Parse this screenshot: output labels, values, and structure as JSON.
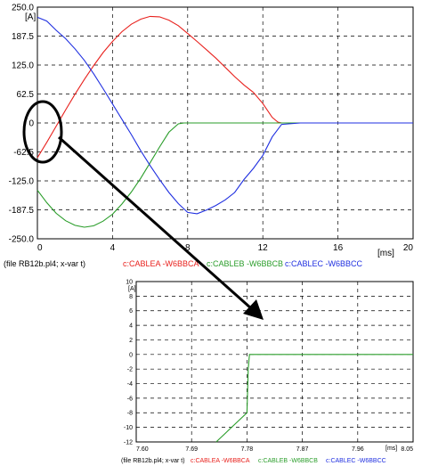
{
  "chart_data": [
    {
      "type": "line",
      "ylabel": "[A]",
      "xlabel": "[ms]",
      "xlim": [
        0,
        20
      ],
      "ylim": [
        -250,
        250
      ],
      "x_ticks": [
        "0",
        "4",
        "8",
        "12",
        "16",
        "20"
      ],
      "y_ticks": [
        "250.0",
        "187.5",
        "125.0",
        "62.5",
        "0",
        "-62.5",
        "-125.0",
        "-187.5",
        "-250.0"
      ],
      "grid": true,
      "caption": "(file RB12b.pl4; x-var t)",
      "series": [
        {
          "name": "c:CABLEA -W6BBCA",
          "color": "#e8211d",
          "x": [
            0,
            0.5,
            1,
            1.5,
            2,
            2.5,
            3,
            3.5,
            4,
            4.5,
            5,
            5.5,
            6,
            6.5,
            7,
            7.5,
            8,
            8.5,
            9,
            9.5,
            10,
            10.5,
            11,
            11.5,
            12,
            12.5,
            12.8,
            13.0,
            14,
            16,
            20
          ],
          "y": [
            -75,
            -42,
            -7,
            28,
            62,
            94,
            124,
            152,
            176,
            197,
            213,
            224,
            230,
            229,
            222,
            210,
            193,
            176,
            158,
            140,
            120,
            100,
            82,
            66,
            42,
            12,
            2,
            0,
            0,
            0,
            0
          ]
        },
        {
          "name": "c:CABLEB -W6BBCB",
          "color": "#2a9d2a",
          "x": [
            0,
            0.5,
            1,
            1.5,
            2,
            2.5,
            3,
            3.5,
            4,
            4.5,
            5,
            5.5,
            6,
            6.5,
            7,
            7.5,
            7.8,
            8,
            10,
            12,
            14,
            16,
            20
          ],
          "y": [
            -145,
            -172,
            -195,
            -211,
            -221,
            -225,
            -222,
            -212,
            -197,
            -175,
            -149,
            -119,
            -86,
            -52,
            -20,
            -2,
            0,
            0,
            0,
            0,
            0,
            0,
            0
          ]
        },
        {
          "name": "c:CABLEC -W6BBCC",
          "color": "#1f2fe0",
          "x": [
            0,
            0.5,
            1,
            1.5,
            2,
            2.5,
            3,
            3.5,
            4,
            4.5,
            5,
            5.5,
            6,
            6.5,
            7,
            7.5,
            8,
            8.5,
            9,
            9.5,
            10,
            10.5,
            11,
            11.5,
            12,
            12.5,
            13,
            14,
            16,
            20
          ],
          "y": [
            228,
            220,
            200,
            182,
            160,
            135,
            106,
            74,
            41,
            8,
            -25,
            -60,
            -92,
            -122,
            -150,
            -174,
            -193,
            -196,
            -188,
            -178,
            -166,
            -150,
            -122,
            -98,
            -70,
            -30,
            -3,
            0,
            0,
            0
          ]
        }
      ]
    },
    {
      "type": "line",
      "ylabel": "[A]",
      "xlabel": "[ms]",
      "xlim": [
        7.6,
        8.05
      ],
      "ylim": [
        -12,
        10
      ],
      "x_ticks": [
        "7.60",
        "7.69",
        "7.78",
        "7.87",
        "7.96",
        "8.05"
      ],
      "y_ticks": [
        "10",
        "8",
        "6",
        "4",
        "2",
        "0",
        "-2",
        "-4",
        "-6",
        "-8",
        "-10",
        "-12"
      ],
      "grid": true,
      "caption": "(file RB12b.pl4; x-var t)",
      "series": [
        {
          "name": "c:CABLEA -W6BBCA",
          "color": "#e8211d",
          "x": [],
          "y": []
        },
        {
          "name": "c:CABLEB -W6BBCB",
          "color": "#2a9d2a",
          "x": [
            7.73,
            7.78,
            7.782,
            7.784,
            7.8,
            8.05
          ],
          "y": [
            -12,
            -8,
            -2,
            0,
            0,
            0
          ]
        },
        {
          "name": "c:CABLEC -W6BBCC",
          "color": "#1f2fe0",
          "x": [],
          "y": []
        }
      ]
    }
  ]
}
